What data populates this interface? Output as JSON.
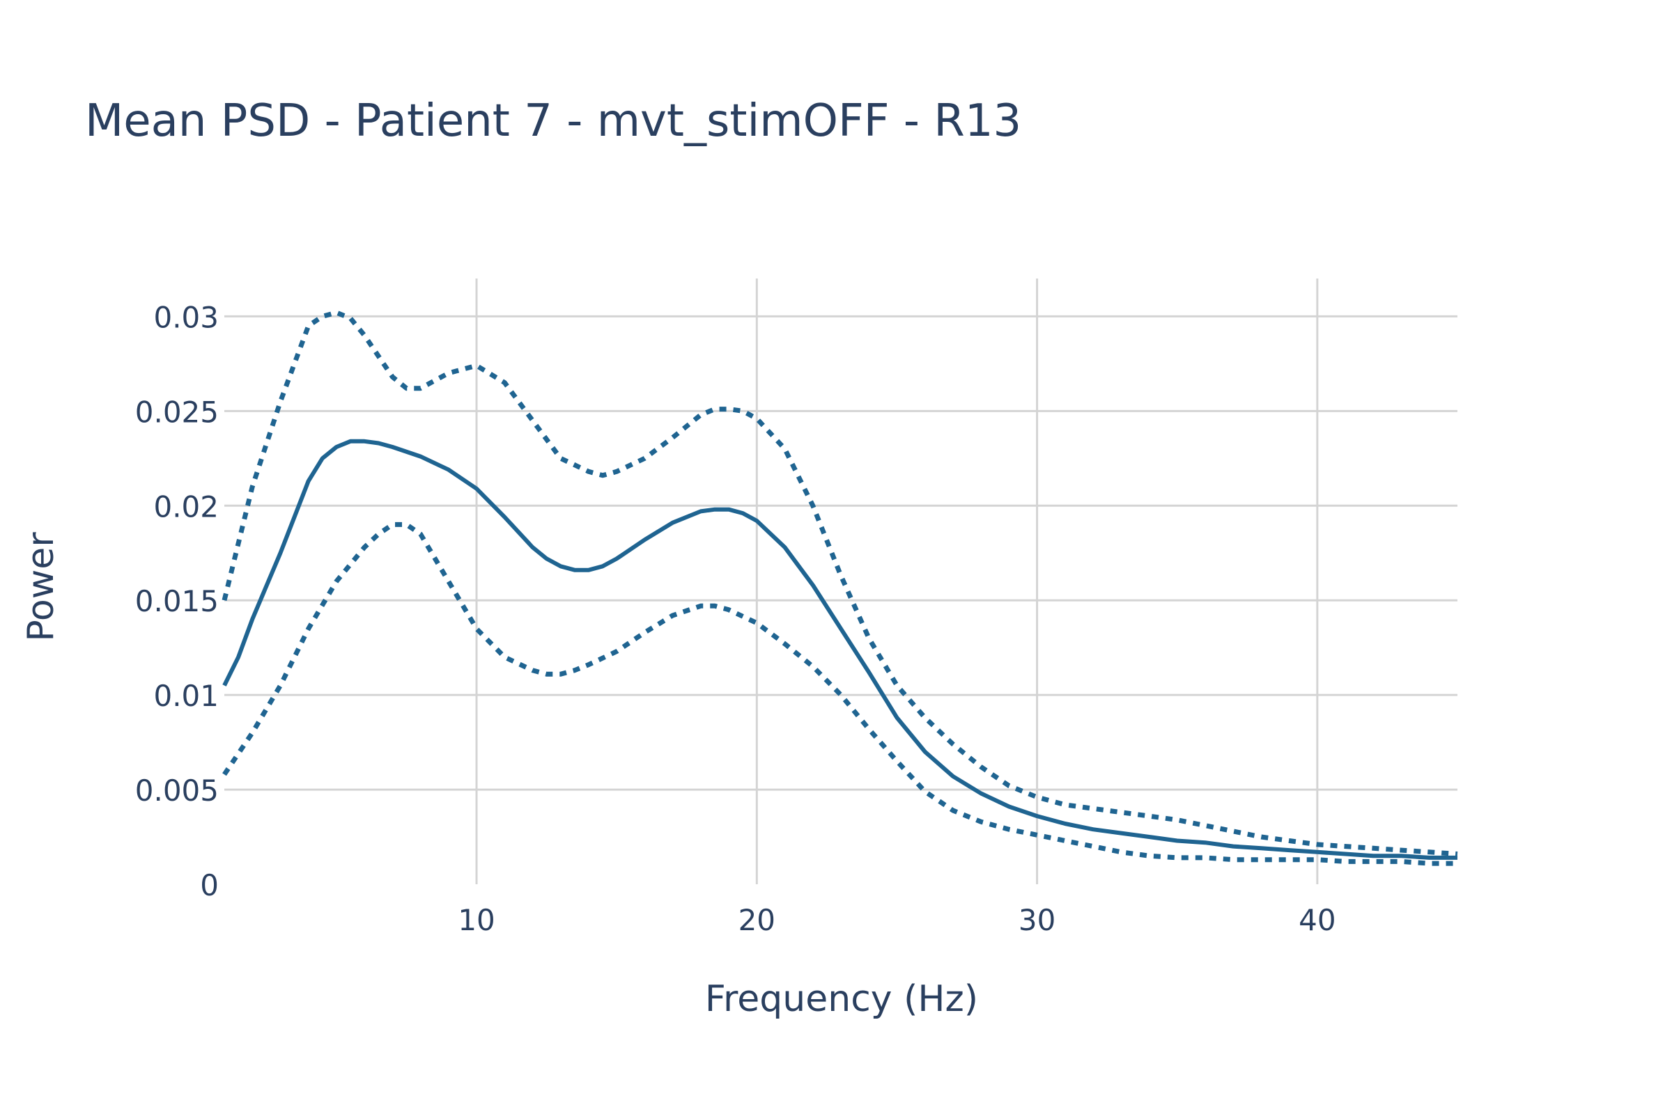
{
  "chart_data": {
    "type": "line",
    "title": "Mean PSD - Patient 7 - mvt_stimOFF - R13",
    "xlabel": "Frequency (Hz)",
    "ylabel": "Power",
    "xlim": [
      1,
      45
    ],
    "ylim": [
      0,
      0.032
    ],
    "xticks": [
      10,
      20,
      30,
      40
    ],
    "xtick_labels": [
      "10",
      "20",
      "30",
      "40"
    ],
    "yticks": [
      0,
      0.005,
      0.01,
      0.015,
      0.02,
      0.025,
      0.03
    ],
    "ytick_labels": [
      "0",
      "0.005",
      "0.01",
      "0.015",
      "0.02",
      "0.025",
      "0.03"
    ],
    "grid": true,
    "legend": "none",
    "color": "#1f6491",
    "series": [
      {
        "style": "solid",
        "x": [
          1,
          1.5,
          2,
          3,
          4,
          4.5,
          5,
          5.5,
          6,
          6.5,
          7,
          8,
          9,
          10,
          11,
          12,
          12.5,
          13,
          13.5,
          14,
          14.5,
          15,
          16,
          17,
          18,
          18.5,
          19,
          19.5,
          20,
          21,
          22,
          23,
          24,
          25,
          26,
          27,
          28,
          29,
          30,
          31,
          32,
          33,
          34,
          35,
          36,
          37,
          38,
          39,
          40,
          41,
          42,
          43,
          44,
          45
        ],
        "y": [
          0.0105,
          0.012,
          0.014,
          0.0175,
          0.0213,
          0.0225,
          0.0231,
          0.0234,
          0.0234,
          0.0233,
          0.0231,
          0.0226,
          0.0219,
          0.0209,
          0.0194,
          0.0178,
          0.0172,
          0.0168,
          0.0166,
          0.0166,
          0.0168,
          0.0172,
          0.0182,
          0.0191,
          0.0197,
          0.0198,
          0.0198,
          0.0196,
          0.0192,
          0.0178,
          0.0158,
          0.0135,
          0.0112,
          0.0088,
          0.007,
          0.0057,
          0.0048,
          0.0041,
          0.0036,
          0.0032,
          0.0029,
          0.0027,
          0.0025,
          0.0023,
          0.0022,
          0.002,
          0.0019,
          0.0018,
          0.0017,
          0.0016,
          0.0015,
          0.0015,
          0.0014,
          0.0014
        ]
      },
      {
        "style": "dotted",
        "x": [
          1,
          1.5,
          2,
          3,
          4,
          4.5,
          5,
          5.5,
          6,
          7,
          7.5,
          8,
          9,
          10,
          11,
          12,
          13,
          14,
          14.5,
          15,
          16,
          17,
          18,
          18.5,
          19,
          19.5,
          20,
          21,
          22,
          23,
          24,
          25,
          26,
          27,
          28,
          29,
          30,
          31,
          32,
          33,
          34,
          35,
          36,
          37,
          38,
          39,
          40,
          41,
          42,
          43,
          44,
          45
        ],
        "y": [
          0.015,
          0.018,
          0.021,
          0.0255,
          0.0295,
          0.03,
          0.0302,
          0.0299,
          0.029,
          0.0268,
          0.0262,
          0.0262,
          0.027,
          0.0274,
          0.0265,
          0.0245,
          0.0225,
          0.0218,
          0.0216,
          0.0218,
          0.0225,
          0.0236,
          0.0248,
          0.0251,
          0.0251,
          0.025,
          0.0246,
          0.023,
          0.02,
          0.0163,
          0.013,
          0.0105,
          0.0088,
          0.0074,
          0.0062,
          0.0052,
          0.0046,
          0.0042,
          0.004,
          0.0038,
          0.0036,
          0.0034,
          0.0031,
          0.0028,
          0.0025,
          0.0023,
          0.0021,
          0.002,
          0.0019,
          0.0018,
          0.0017,
          0.0016
        ]
      },
      {
        "style": "dotted",
        "x": [
          1,
          2,
          3,
          4,
          5,
          6,
          6.5,
          7,
          7.5,
          8,
          9,
          10,
          11,
          12,
          12.5,
          13,
          13.5,
          14,
          15,
          16,
          17,
          18,
          18.5,
          19,
          20,
          21,
          22,
          23,
          24,
          25,
          26,
          27,
          28,
          29,
          30,
          31,
          32,
          33,
          34,
          35,
          36,
          37,
          38,
          39,
          40,
          41,
          42,
          43,
          44,
          45
        ],
        "y": [
          0.0058,
          0.008,
          0.0105,
          0.0135,
          0.016,
          0.0178,
          0.0185,
          0.019,
          0.019,
          0.0185,
          0.016,
          0.0135,
          0.012,
          0.0113,
          0.0111,
          0.0111,
          0.0113,
          0.0116,
          0.0123,
          0.0133,
          0.0142,
          0.0147,
          0.0147,
          0.0145,
          0.0138,
          0.0127,
          0.0115,
          0.01,
          0.0082,
          0.0065,
          0.0049,
          0.0039,
          0.0033,
          0.0029,
          0.0026,
          0.0023,
          0.002,
          0.0017,
          0.0015,
          0.0014,
          0.0014,
          0.0013,
          0.0013,
          0.0013,
          0.0013,
          0.0012,
          0.0012,
          0.0012,
          0.0011,
          0.0011
        ]
      }
    ]
  }
}
